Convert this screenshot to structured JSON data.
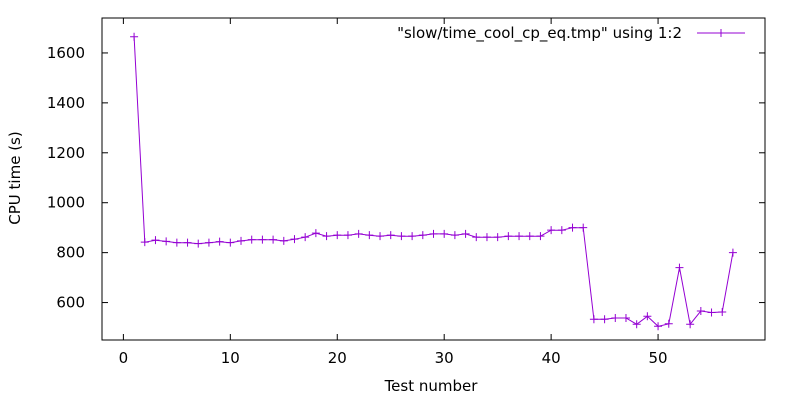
{
  "chart_data": {
    "type": "line",
    "title": "",
    "xlabel": "Test number",
    "ylabel": "CPU time (s)",
    "xlim": [
      -2,
      60
    ],
    "ylim": [
      450,
      1740
    ],
    "xticks": [
      0,
      10,
      20,
      30,
      40,
      50
    ],
    "yticks": [
      600,
      800,
      1000,
      1200,
      1400,
      1600
    ],
    "grid": false,
    "legend_position": "top-right",
    "series": [
      {
        "name": "\"slow/time_cool_cp_eq.tmp\" using 1:2",
        "color": "#9400d3",
        "marker": "plus",
        "x": [
          1,
          2,
          3,
          4,
          5,
          6,
          7,
          8,
          9,
          10,
          11,
          12,
          13,
          14,
          15,
          16,
          17,
          18,
          19,
          20,
          21,
          22,
          23,
          24,
          25,
          26,
          27,
          28,
          29,
          30,
          31,
          32,
          33,
          34,
          35,
          36,
          37,
          38,
          39,
          40,
          41,
          42,
          43,
          44,
          45,
          46,
          47,
          48,
          49,
          50,
          51,
          52,
          53,
          54,
          55,
          56,
          57
        ],
        "y": [
          1665,
          842,
          850,
          845,
          840,
          840,
          836,
          840,
          844,
          840,
          847,
          852,
          852,
          852,
          847,
          854,
          862,
          878,
          866,
          870,
          870,
          875,
          870,
          866,
          870,
          866,
          866,
          870,
          875,
          875,
          870,
          875,
          862,
          862,
          862,
          866,
          866,
          866,
          866,
          890,
          890,
          900,
          900,
          533,
          533,
          538,
          538,
          513,
          545,
          505,
          515,
          740,
          513,
          566,
          560,
          562,
          800
        ]
      }
    ]
  }
}
